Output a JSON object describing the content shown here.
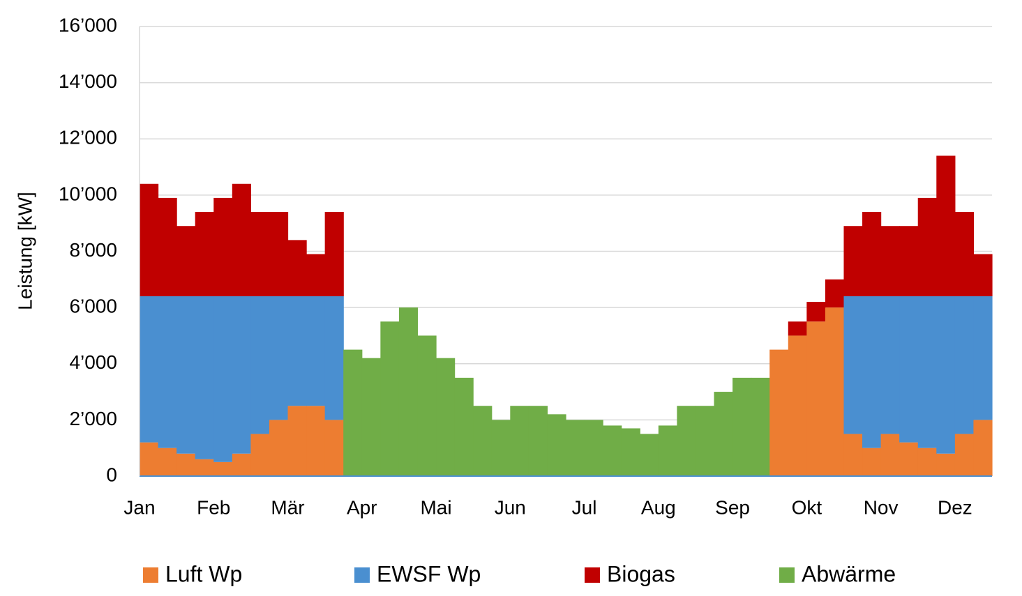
{
  "chart_data": {
    "type": "bar",
    "stacked": true,
    "y_label": "Leistung [kW]",
    "x": [
      0.125,
      0.375,
      0.625,
      0.875,
      1.125,
      1.375,
      1.625,
      1.875,
      2.125,
      2.375,
      2.625,
      2.875,
      3.125,
      3.375,
      3.625,
      3.875,
      4.125,
      4.375,
      4.625,
      4.875,
      5.125,
      5.375,
      5.625,
      5.875,
      6.125,
      6.375,
      6.625,
      6.875,
      7.125,
      7.375,
      7.625,
      7.875,
      8.125,
      8.375,
      8.625,
      8.875,
      9.125,
      9.375,
      9.625,
      9.875,
      10.125,
      10.375,
      10.625,
      10.875,
      11.125,
      11.375
    ],
    "xlim": [
      0,
      11.5
    ],
    "xticks": [
      {
        "value": 0,
        "label": "Jan"
      },
      {
        "value": 1,
        "label": "Feb"
      },
      {
        "value": 2,
        "label": "Mär"
      },
      {
        "value": 3,
        "label": "Apr"
      },
      {
        "value": 4,
        "label": "Mai"
      },
      {
        "value": 5,
        "label": "Jun"
      },
      {
        "value": 6,
        "label": "Jul"
      },
      {
        "value": 7,
        "label": "Aug"
      },
      {
        "value": 8,
        "label": "Sep"
      },
      {
        "value": 9,
        "label": "Okt"
      },
      {
        "value": 10,
        "label": "Nov"
      },
      {
        "value": 11,
        "label": "Dez"
      }
    ],
    "ylim": [
      0,
      16000
    ],
    "yticks": [
      {
        "value": 0,
        "label": "0"
      },
      {
        "value": 2000,
        "label": "2’000"
      },
      {
        "value": 4000,
        "label": "4’000"
      },
      {
        "value": 6000,
        "label": "6’000"
      },
      {
        "value": 8000,
        "label": "8’000"
      },
      {
        "value": 10000,
        "label": "10’000"
      },
      {
        "value": 12000,
        "label": "12’000"
      },
      {
        "value": 14000,
        "label": "14’000"
      },
      {
        "value": 16000,
        "label": "16’000"
      }
    ],
    "grid": true,
    "legend": "bottom",
    "series": [
      {
        "name": "Luft Wp",
        "color": "#ed7d31",
        "values": [
          1200,
          1000,
          800,
          600,
          500,
          800,
          1500,
          2000,
          2500,
          2500,
          2000,
          0,
          0,
          0,
          0,
          0,
          0,
          0,
          0,
          0,
          0,
          0,
          0,
          0,
          0,
          0,
          0,
          0,
          0,
          0,
          0,
          0,
          0,
          0,
          4500,
          5000,
          5500,
          6000,
          1500,
          1000,
          1500,
          1200,
          1000,
          800,
          1500,
          2000
        ]
      },
      {
        "name": "EWSF Wp",
        "color": "#4a8fd0",
        "values": [
          5200,
          5400,
          5600,
          5800,
          5900,
          5600,
          4900,
          4400,
          3900,
          3900,
          4400,
          0,
          0,
          0,
          0,
          0,
          0,
          0,
          0,
          0,
          0,
          0,
          0,
          0,
          0,
          0,
          0,
          0,
          0,
          0,
          0,
          0,
          0,
          0,
          0,
          0,
          0,
          0,
          4900,
          5400,
          4900,
          5200,
          5400,
          5600,
          4900,
          4400
        ]
      },
      {
        "name": "Biogas",
        "color": "#c00000",
        "values": [
          4000,
          3500,
          2500,
          3000,
          3500,
          4000,
          3000,
          3000,
          2000,
          1500,
          3000,
          0,
          0,
          0,
          0,
          0,
          0,
          0,
          0,
          0,
          0,
          0,
          0,
          0,
          0,
          0,
          0,
          0,
          0,
          0,
          0,
          0,
          0,
          0,
          0,
          500,
          700,
          1000,
          2500,
          3000,
          2500,
          2500,
          3500,
          5000,
          3000,
          1500
        ]
      },
      {
        "name": "Abwärme",
        "color": "#70ad47",
        "values": [
          0,
          0,
          0,
          0,
          0,
          0,
          0,
          0,
          0,
          0,
          0,
          4500,
          4200,
          5500,
          6000,
          5000,
          4200,
          3500,
          2500,
          2000,
          2500,
          2500,
          2200,
          2000,
          2000,
          1800,
          1700,
          1500,
          1800,
          2500,
          2500,
          3000,
          3500,
          3500,
          0,
          0,
          0,
          0,
          0,
          0,
          0,
          0,
          0,
          0,
          0,
          0
        ]
      }
    ]
  }
}
